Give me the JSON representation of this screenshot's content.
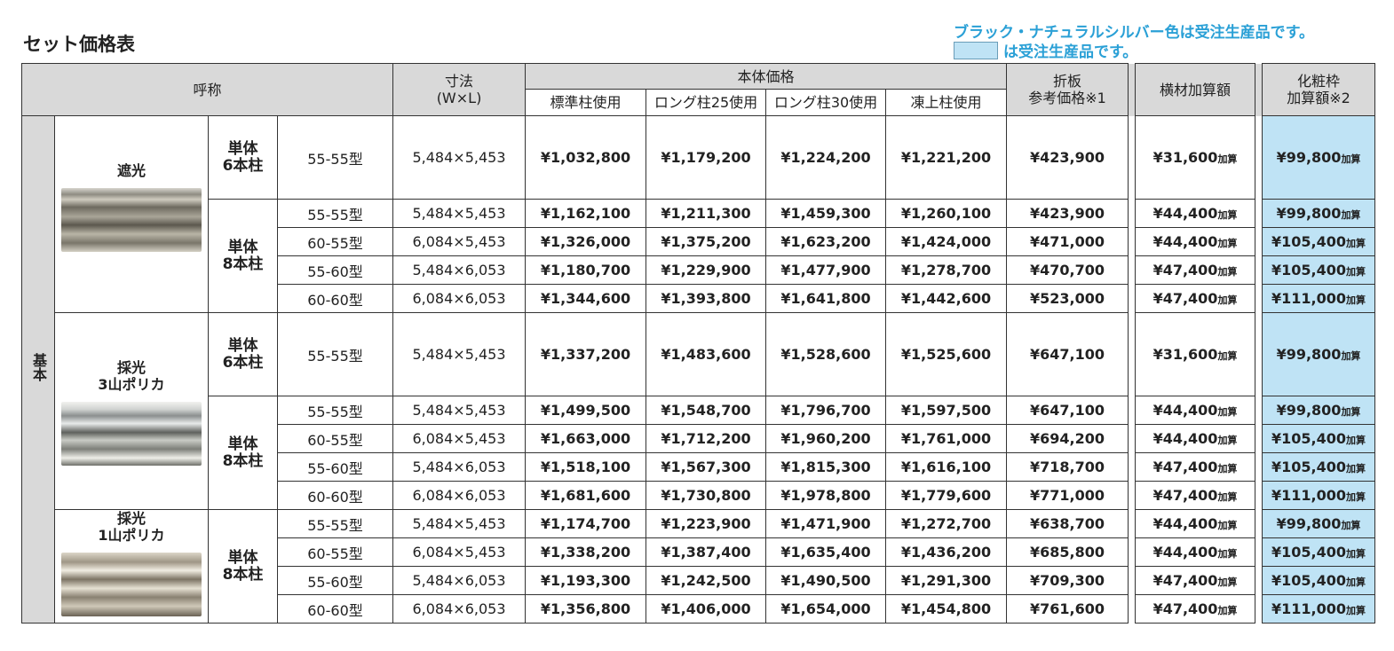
{
  "title": "セット価格表",
  "notes": {
    "line1": "ブラック・ナチュラルシルバー色は受注生産品です。",
    "line2": "は受注生産品です。"
  },
  "colors": {
    "highlight": "#bfe3f5",
    "header_bg": "#d9d9d9",
    "note": "#2aa0d6"
  },
  "headers": {
    "name": "呼称",
    "size": "寸法",
    "size_sub": "(W×L)",
    "body_price": "本体価格",
    "standard": "標準柱使用",
    "long25": "ロング柱25使用",
    "long30": "ロング柱30使用",
    "frozen": "凍上柱使用",
    "fold_line1": "折板",
    "fold_line2": "参考価格※1",
    "cross": "横材加算額",
    "cosmetic_line1": "化粧枠",
    "cosmetic_line2": "加算額※2"
  },
  "side_label": "基本",
  "kasan": "加算",
  "groups": [
    {
      "label_line1": "遮光",
      "label_line2": "",
      "photo": "shade-carport-photo"
    },
    {
      "label_line1": "採光",
      "label_line2": "3山ポリカ",
      "photo": "polycarbonate-3-carport-photo"
    },
    {
      "label_line1": "採光",
      "label_line2": "1山ポリカ",
      "photo": "polycarbonate-1-carport-photo"
    }
  ],
  "units": {
    "six": {
      "line1": "単体",
      "line2": "6本柱"
    },
    "eight": {
      "line1": "単体",
      "line2": "8本柱"
    }
  },
  "rows": [
    {
      "type": "55-55型",
      "size": "5,484×5,453",
      "std": "¥1,032,800",
      "l25": "¥1,179,200",
      "l30": "¥1,224,200",
      "frz": "¥1,221,200",
      "fold": "¥423,900",
      "cross": "¥31,600",
      "cos": "¥99,800"
    },
    {
      "type": "55-55型",
      "size": "5,484×5,453",
      "std": "¥1,162,100",
      "l25": "¥1,211,300",
      "l30": "¥1,459,300",
      "frz": "¥1,260,100",
      "fold": "¥423,900",
      "cross": "¥44,400",
      "cos": "¥99,800"
    },
    {
      "type": "60-55型",
      "size": "6,084×5,453",
      "std": "¥1,326,000",
      "l25": "¥1,375,200",
      "l30": "¥1,623,200",
      "frz": "¥1,424,000",
      "fold": "¥471,000",
      "cross": "¥44,400",
      "cos": "¥105,400"
    },
    {
      "type": "55-60型",
      "size": "5,484×6,053",
      "std": "¥1,180,700",
      "l25": "¥1,229,900",
      "l30": "¥1,477,900",
      "frz": "¥1,278,700",
      "fold": "¥470,700",
      "cross": "¥47,400",
      "cos": "¥105,400"
    },
    {
      "type": "60-60型",
      "size": "6,084×6,053",
      "std": "¥1,344,600",
      "l25": "¥1,393,800",
      "l30": "¥1,641,800",
      "frz": "¥1,442,600",
      "fold": "¥523,000",
      "cross": "¥47,400",
      "cos": "¥111,000"
    },
    {
      "type": "55-55型",
      "size": "5,484×5,453",
      "std": "¥1,337,200",
      "l25": "¥1,483,600",
      "l30": "¥1,528,600",
      "frz": "¥1,525,600",
      "fold": "¥647,100",
      "cross": "¥31,600",
      "cos": "¥99,800"
    },
    {
      "type": "55-55型",
      "size": "5,484×5,453",
      "std": "¥1,499,500",
      "l25": "¥1,548,700",
      "l30": "¥1,796,700",
      "frz": "¥1,597,500",
      "fold": "¥647,100",
      "cross": "¥44,400",
      "cos": "¥99,800"
    },
    {
      "type": "60-55型",
      "size": "6,084×5,453",
      "std": "¥1,663,000",
      "l25": "¥1,712,200",
      "l30": "¥1,960,200",
      "frz": "¥1,761,000",
      "fold": "¥694,200",
      "cross": "¥44,400",
      "cos": "¥105,400"
    },
    {
      "type": "55-60型",
      "size": "5,484×6,053",
      "std": "¥1,518,100",
      "l25": "¥1,567,300",
      "l30": "¥1,815,300",
      "frz": "¥1,616,100",
      "fold": "¥718,700",
      "cross": "¥47,400",
      "cos": "¥105,400"
    },
    {
      "type": "60-60型",
      "size": "6,084×6,053",
      "std": "¥1,681,600",
      "l25": "¥1,730,800",
      "l30": "¥1,978,800",
      "frz": "¥1,779,600",
      "fold": "¥771,000",
      "cross": "¥47,400",
      "cos": "¥111,000"
    },
    {
      "type": "55-55型",
      "size": "5,484×5,453",
      "std": "¥1,174,700",
      "l25": "¥1,223,900",
      "l30": "¥1,471,900",
      "frz": "¥1,272,700",
      "fold": "¥638,700",
      "cross": "¥44,400",
      "cos": "¥99,800"
    },
    {
      "type": "60-55型",
      "size": "6,084×5,453",
      "std": "¥1,338,200",
      "l25": "¥1,387,400",
      "l30": "¥1,635,400",
      "frz": "¥1,436,200",
      "fold": "¥685,800",
      "cross": "¥44,400",
      "cos": "¥105,400"
    },
    {
      "type": "55-60型",
      "size": "5,484×6,053",
      "std": "¥1,193,300",
      "l25": "¥1,242,500",
      "l30": "¥1,490,500",
      "frz": "¥1,291,300",
      "fold": "¥709,300",
      "cross": "¥47,400",
      "cos": "¥105,400"
    },
    {
      "type": "60-60型",
      "size": "6,084×6,053",
      "std": "¥1,356,800",
      "l25": "¥1,406,000",
      "l30": "¥1,654,000",
      "frz": "¥1,454,800",
      "fold": "¥761,600",
      "cross": "¥47,400",
      "cos": "¥111,000"
    }
  ]
}
